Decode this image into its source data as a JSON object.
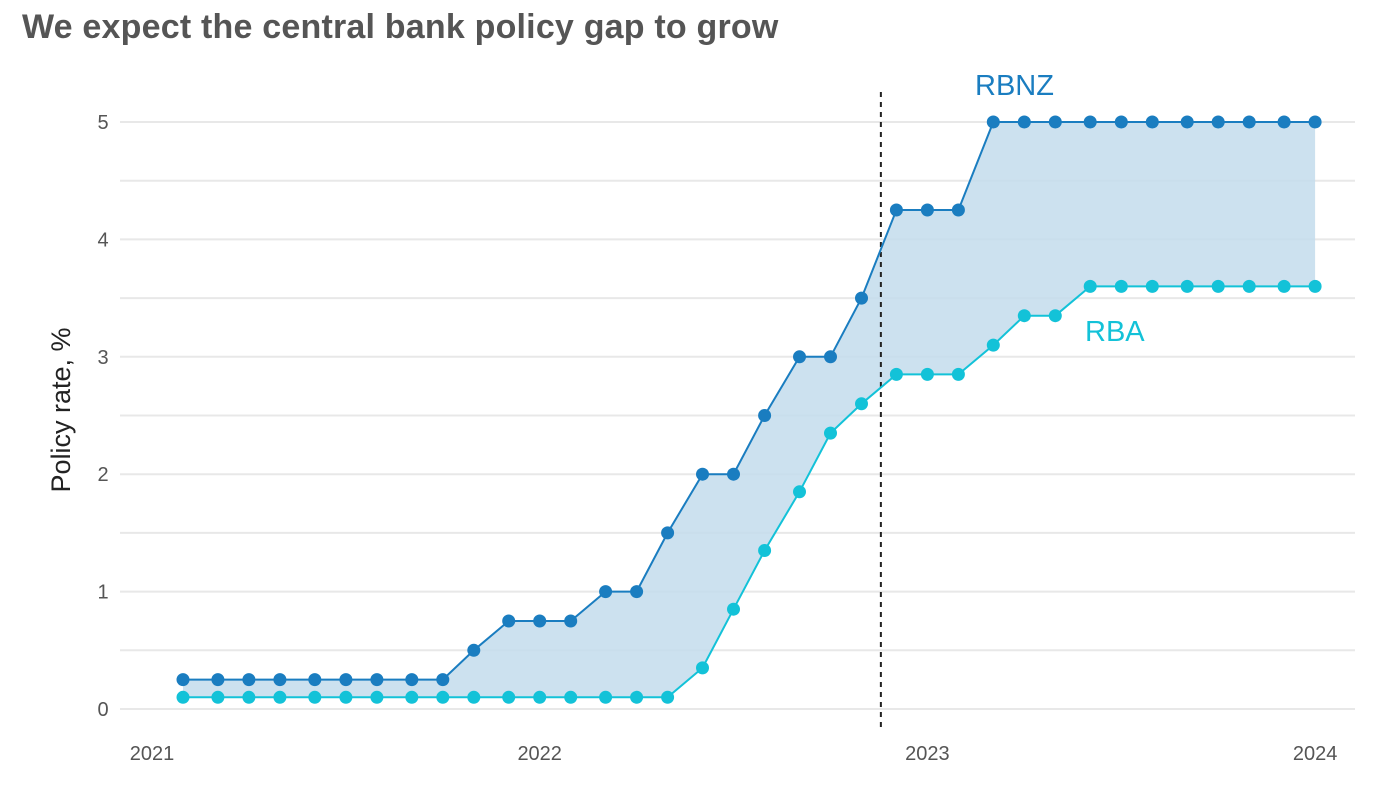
{
  "title": "We expect the central bank policy gap to grow",
  "colors": {
    "rbnz": "#1a7dc0",
    "rba": "#13c2d8",
    "fill": "#c3dcec",
    "grid": "#e8e8e8",
    "marker_line": "#222222"
  },
  "chart_data": {
    "type": "line",
    "title": "We expect the central bank policy gap to grow",
    "xlabel": "",
    "ylabel": "Policy rate, %",
    "xlim": [
      2021.0,
      2024.0
    ],
    "ylim": [
      0,
      5
    ],
    "x_ticks": [
      2021,
      2022,
      2023,
      2024
    ],
    "x_tick_labels": [
      "2021",
      "2022",
      "2023",
      "2024"
    ],
    "y_ticks": [
      0,
      1,
      2,
      3,
      4,
      5
    ],
    "y_tick_labels": [
      "0",
      "1",
      "2",
      "3",
      "4",
      "5"
    ],
    "grid": true,
    "vertical_line_x": 2022.88,
    "shaded_between_series": true,
    "x": [
      2021.08,
      2021.17,
      2021.25,
      2021.33,
      2021.42,
      2021.5,
      2021.58,
      2021.67,
      2021.75,
      2021.83,
      2021.92,
      2022.0,
      2022.08,
      2022.17,
      2022.25,
      2022.33,
      2022.42,
      2022.5,
      2022.58,
      2022.67,
      2022.75,
      2022.83,
      2022.92,
      2023.0,
      2023.08,
      2023.17,
      2023.25,
      2023.33,
      2023.42,
      2023.5,
      2023.58,
      2023.67,
      2023.75,
      2023.83,
      2023.92,
      2024.0
    ],
    "series": [
      {
        "name": "RBNZ",
        "values": [
          0.25,
          0.25,
          0.25,
          0.25,
          0.25,
          0.25,
          0.25,
          0.25,
          0.25,
          0.5,
          0.75,
          0.75,
          0.75,
          1.0,
          1.0,
          1.5,
          2.0,
          2.0,
          2.5,
          3.0,
          3.0,
          3.5,
          4.25,
          4.25,
          4.25,
          5.0,
          5.0,
          5.0,
          5.0,
          5.0,
          5.0,
          5.0,
          5.0,
          5.0,
          5.0,
          5.0
        ]
      },
      {
        "name": "RBA",
        "values": [
          0.1,
          0.1,
          0.1,
          0.1,
          0.1,
          0.1,
          0.1,
          0.1,
          0.1,
          0.1,
          0.1,
          0.1,
          0.1,
          0.1,
          0.1,
          0.1,
          0.35,
          0.85,
          1.35,
          1.85,
          2.35,
          2.6,
          2.85,
          2.85,
          2.85,
          3.1,
          3.35,
          3.35,
          3.6,
          3.6,
          3.6,
          3.6,
          3.6,
          3.6,
          3.6,
          3.6
        ]
      }
    ],
    "annotations": [
      "RBNZ",
      "RBA"
    ]
  }
}
